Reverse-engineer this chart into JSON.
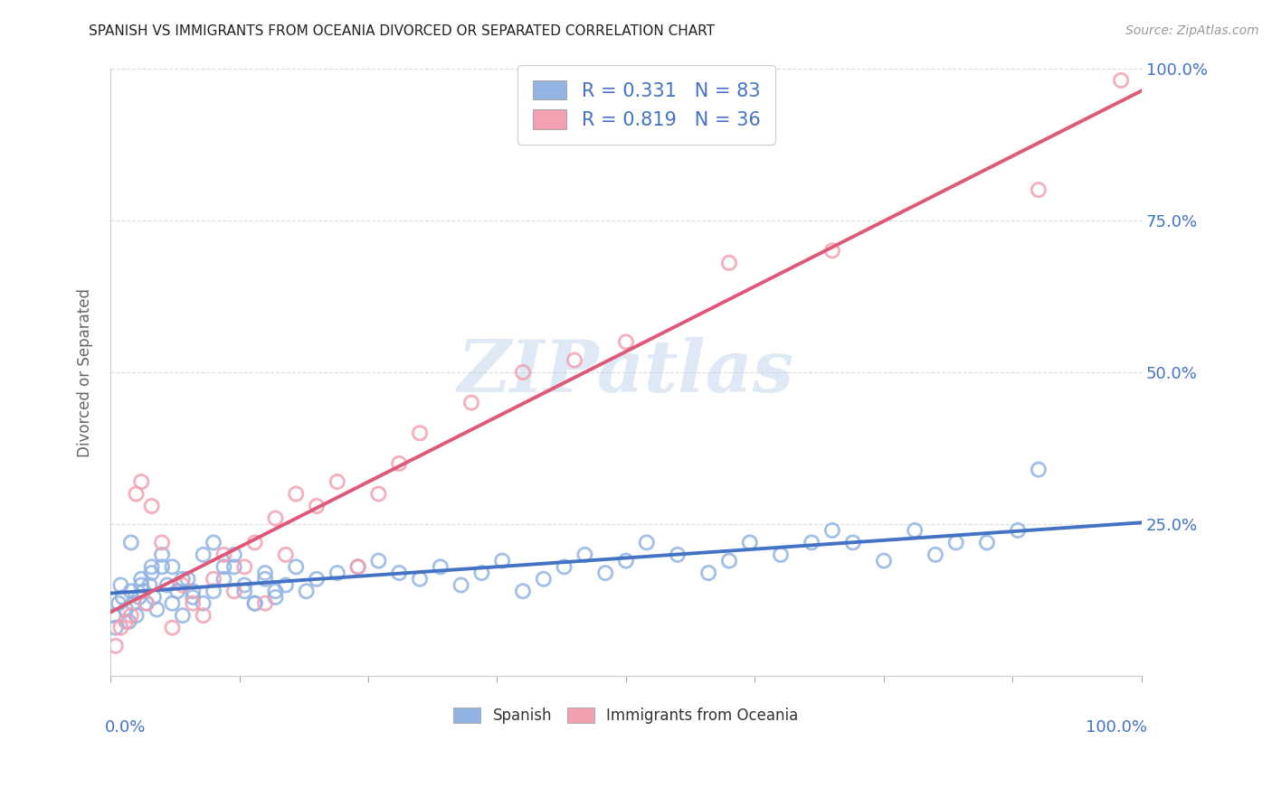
{
  "title": "SPANISH VS IMMIGRANTS FROM OCEANIA DIVORCED OR SEPARATED CORRELATION CHART",
  "source_text": "Source: ZipAtlas.com",
  "ylabel": "Divorced or Separated",
  "legend1_label": "Spanish",
  "legend2_label": "Immigrants from Oceania",
  "R1": 0.331,
  "N1": 83,
  "R2": 0.819,
  "N2": 36,
  "blue_color": "#92b4e3",
  "pink_color": "#f4a0b0",
  "blue_line_color": "#4472c4",
  "pink_line_color": "#e05878",
  "watermark_text": "ZIPatlas",
  "background_color": "#ffffff",
  "grid_color": "#cccccc",
  "title_color": "#222222",
  "axis_label_color": "#4472c4",
  "blue_x": [
    0.3,
    0.5,
    0.8,
    1.0,
    1.2,
    1.5,
    1.8,
    2.0,
    2.2,
    2.5,
    2.8,
    3.0,
    3.2,
    3.5,
    3.8,
    4.0,
    4.2,
    4.5,
    5.0,
    5.5,
    6.0,
    6.5,
    7.0,
    7.5,
    8.0,
    9.0,
    10.0,
    11.0,
    12.0,
    13.0,
    14.0,
    15.0,
    16.0,
    17.0,
    18.0,
    19.0,
    20.0,
    22.0,
    24.0,
    26.0,
    28.0,
    30.0,
    32.0,
    34.0,
    36.0,
    38.0,
    40.0,
    42.0,
    44.0,
    46.0,
    48.0,
    50.0,
    52.0,
    55.0,
    58.0,
    60.0,
    62.0,
    65.0,
    68.0,
    70.0,
    72.0,
    75.0,
    78.0,
    80.0,
    82.0,
    85.0,
    88.0,
    90.0,
    2.0,
    3.0,
    4.0,
    5.0,
    6.0,
    7.0,
    8.0,
    9.0,
    10.0,
    11.0,
    12.0,
    13.0,
    14.0,
    15.0,
    16.0
  ],
  "blue_y": [
    10,
    8,
    12,
    15,
    13,
    11,
    9,
    14,
    12,
    10,
    13,
    16,
    14,
    12,
    15,
    17,
    13,
    11,
    18,
    15,
    12,
    14,
    10,
    16,
    13,
    12,
    14,
    16,
    18,
    15,
    12,
    17,
    13,
    15,
    18,
    14,
    16,
    17,
    18,
    19,
    17,
    16,
    18,
    15,
    17,
    19,
    14,
    16,
    18,
    20,
    17,
    19,
    22,
    20,
    17,
    19,
    22,
    20,
    22,
    24,
    22,
    19,
    24,
    20,
    22,
    22,
    24,
    34,
    22,
    15,
    18,
    20,
    18,
    16,
    14,
    20,
    22,
    18,
    20,
    14,
    12,
    16,
    14
  ],
  "pink_x": [
    0.5,
    1.0,
    1.5,
    2.0,
    2.5,
    3.0,
    3.5,
    4.0,
    5.0,
    6.0,
    7.0,
    8.0,
    9.0,
    10.0,
    11.0,
    12.0,
    13.0,
    14.0,
    15.0,
    16.0,
    17.0,
    18.0,
    20.0,
    22.0,
    24.0,
    26.0,
    28.0,
    30.0,
    35.0,
    40.0,
    45.0,
    50.0,
    60.0,
    70.0,
    90.0,
    98.0
  ],
  "pink_y": [
    5,
    8,
    9,
    10,
    30,
    32,
    12,
    28,
    22,
    8,
    15,
    12,
    10,
    16,
    20,
    14,
    18,
    22,
    12,
    26,
    20,
    30,
    28,
    32,
    18,
    30,
    35,
    40,
    45,
    50,
    52,
    55,
    68,
    70,
    80,
    98
  ]
}
